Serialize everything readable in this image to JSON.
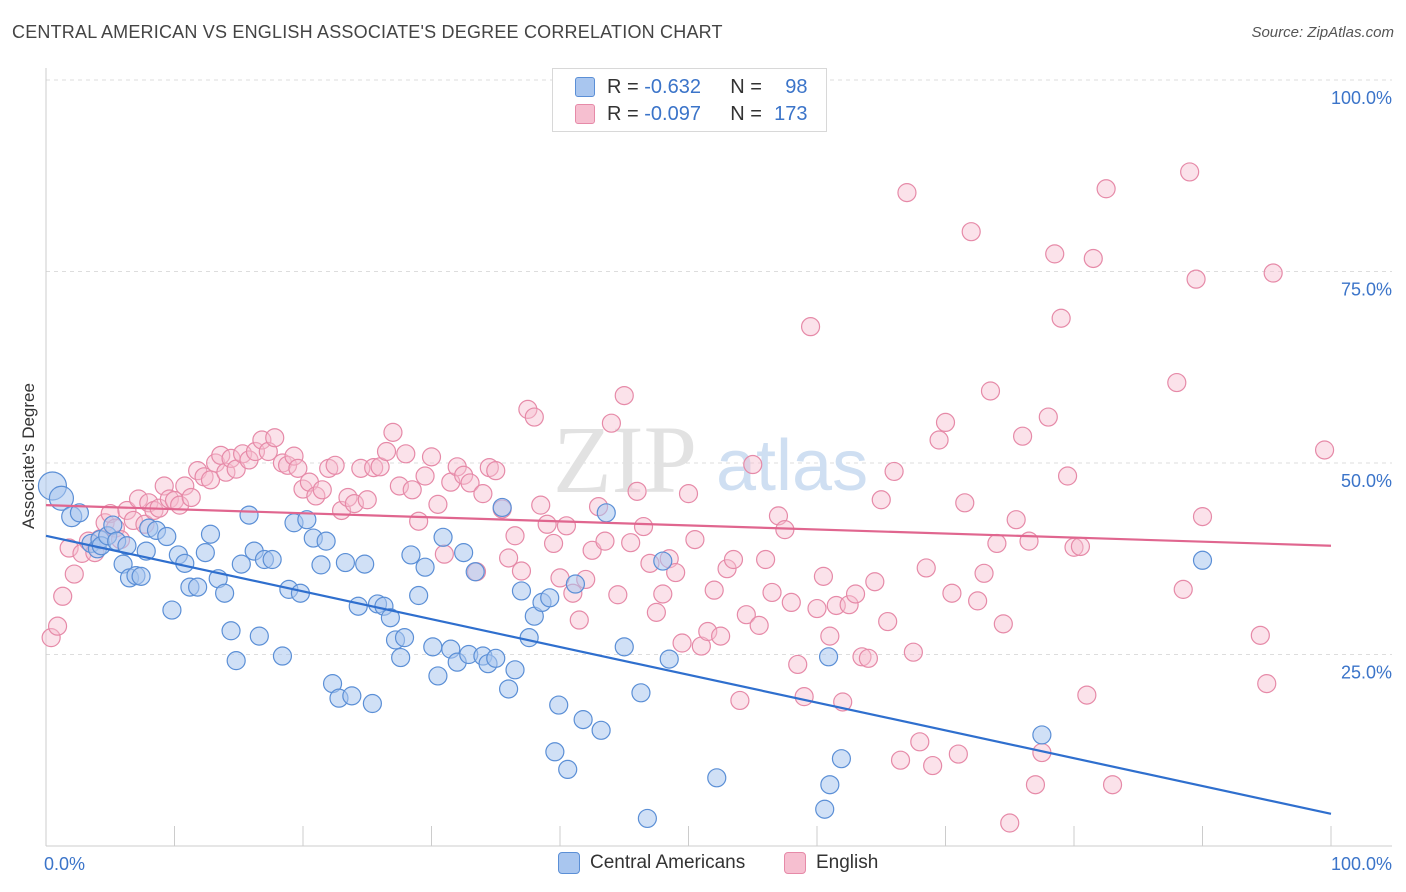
{
  "title": "CENTRAL AMERICAN VS ENGLISH ASSOCIATE'S DEGREE CORRELATION CHART",
  "source": "Source: ZipAtlas.com",
  "watermark": {
    "zip": "ZIP",
    "atlas": "atlas"
  },
  "legend": {
    "rows": [
      {
        "r_label": "R =",
        "r_value": "-0.632",
        "n_label": "N =",
        "n_value": "98"
      },
      {
        "r_label": "R =",
        "r_value": "-0.097",
        "n_label": "N =",
        "n_value": "173"
      }
    ]
  },
  "colors": {
    "blue_fill": "#a9c6ef",
    "blue_stroke": "#5b8fd6",
    "blue_line": "#2f6fce",
    "pink_fill": "#f6bfd0",
    "pink_stroke": "#e68aa8",
    "pink_line": "#e0668f",
    "axis_text": "#3b74c9",
    "grid": "#dddddd"
  },
  "chart_data": {
    "type": "scatter",
    "title": "CENTRAL AMERICAN VS ENGLISH ASSOCIATE'S DEGREE CORRELATION CHART",
    "xlabel": "",
    "ylabel": "Associate's Degree",
    "xlim": [
      0,
      100
    ],
    "ylim": [
      0,
      100
    ],
    "x_tick_labels": [
      "0.0%",
      "100.0%"
    ],
    "y_tick_labels": [
      "100.0%",
      "75.0%",
      "50.0%",
      "25.0%"
    ],
    "y_ticks": [
      100,
      75,
      50,
      25
    ],
    "series": [
      {
        "name": "Central Americans",
        "color": "#5b8fd6",
        "trend": {
          "x": [
            0,
            100
          ],
          "y": [
            40.5,
            4.2
          ]
        },
        "points": [
          [
            0.5,
            47.0
          ],
          [
            1.2,
            45.4
          ],
          [
            2.0,
            43.0
          ],
          [
            2.6,
            43.5
          ],
          [
            3.5,
            39.5
          ],
          [
            4.0,
            38.8
          ],
          [
            4.2,
            40.0
          ],
          [
            4.3,
            39.2
          ],
          [
            4.8,
            40.5
          ],
          [
            5.2,
            41.9
          ],
          [
            5.5,
            39.8
          ],
          [
            6.0,
            36.8
          ],
          [
            6.3,
            39.2
          ],
          [
            6.5,
            35.0
          ],
          [
            7.0,
            35.3
          ],
          [
            7.4,
            35.2
          ],
          [
            7.8,
            38.5
          ],
          [
            8.0,
            41.5
          ],
          [
            8.6,
            41.2
          ],
          [
            9.4,
            40.4
          ],
          [
            9.8,
            30.8
          ],
          [
            10.3,
            38.0
          ],
          [
            10.8,
            36.9
          ],
          [
            11.2,
            33.8
          ],
          [
            11.8,
            33.8
          ],
          [
            12.4,
            38.3
          ],
          [
            12.8,
            40.7
          ],
          [
            13.4,
            34.9
          ],
          [
            13.9,
            33.0
          ],
          [
            14.4,
            28.1
          ],
          [
            14.8,
            24.2
          ],
          [
            15.2,
            36.8
          ],
          [
            15.8,
            43.2
          ],
          [
            16.2,
            38.5
          ],
          [
            16.6,
            27.4
          ],
          [
            17.0,
            37.4
          ],
          [
            17.6,
            37.4
          ],
          [
            18.4,
            24.8
          ],
          [
            18.9,
            33.5
          ],
          [
            19.3,
            42.2
          ],
          [
            19.8,
            33.0
          ],
          [
            20.3,
            42.6
          ],
          [
            20.8,
            40.2
          ],
          [
            21.4,
            36.7
          ],
          [
            21.8,
            39.8
          ],
          [
            22.3,
            21.2
          ],
          [
            22.8,
            19.3
          ],
          [
            23.3,
            37.0
          ],
          [
            23.8,
            19.6
          ],
          [
            24.3,
            31.3
          ],
          [
            24.8,
            36.8
          ],
          [
            25.4,
            18.6
          ],
          [
            25.8,
            31.6
          ],
          [
            26.3,
            31.3
          ],
          [
            26.8,
            29.8
          ],
          [
            27.2,
            26.9
          ],
          [
            27.6,
            24.6
          ],
          [
            27.9,
            27.2
          ],
          [
            28.4,
            38.0
          ],
          [
            29.0,
            32.7
          ],
          [
            29.5,
            36.4
          ],
          [
            30.1,
            26.0
          ],
          [
            30.5,
            22.2
          ],
          [
            30.9,
            40.3
          ],
          [
            31.5,
            25.7
          ],
          [
            32.0,
            24.0
          ],
          [
            32.5,
            38.3
          ],
          [
            32.9,
            25.0
          ],
          [
            33.4,
            35.8
          ],
          [
            34.0,
            24.8
          ],
          [
            34.4,
            23.8
          ],
          [
            35.0,
            24.5
          ],
          [
            35.5,
            44.2
          ],
          [
            36.0,
            20.5
          ],
          [
            36.5,
            23.0
          ],
          [
            37.0,
            33.3
          ],
          [
            37.6,
            27.2
          ],
          [
            38.0,
            30.0
          ],
          [
            38.6,
            31.8
          ],
          [
            39.2,
            32.4
          ],
          [
            39.6,
            12.3
          ],
          [
            39.9,
            18.4
          ],
          [
            40.6,
            10.0
          ],
          [
            41.2,
            34.2
          ],
          [
            41.8,
            16.5
          ],
          [
            43.2,
            15.1
          ],
          [
            43.6,
            43.5
          ],
          [
            45.0,
            26.0
          ],
          [
            46.3,
            20.0
          ],
          [
            46.8,
            3.6
          ],
          [
            48.0,
            37.2
          ],
          [
            48.5,
            24.4
          ],
          [
            52.2,
            8.9
          ],
          [
            60.6,
            4.8
          ],
          [
            60.9,
            24.7
          ],
          [
            61.0,
            8.0
          ],
          [
            61.9,
            11.4
          ],
          [
            77.5,
            14.5
          ],
          [
            90.0,
            37.3
          ]
        ],
        "point_sizes": [
          14,
          12,
          10,
          9,
          9,
          9,
          9,
          9,
          9,
          9,
          9,
          9,
          9,
          9,
          9,
          9,
          9,
          9,
          9,
          9,
          9,
          9,
          9,
          9,
          9,
          9,
          9,
          9,
          9,
          9,
          9,
          9,
          9,
          9,
          9,
          9,
          9,
          9,
          9,
          9,
          9,
          9,
          9,
          9,
          9,
          9,
          9,
          9,
          9,
          9,
          9,
          9,
          9,
          9,
          9,
          9,
          9,
          9,
          9,
          9,
          9,
          9,
          9,
          9,
          9,
          9,
          9,
          9,
          9,
          9,
          9,
          9,
          9,
          9,
          9,
          9,
          9,
          9,
          9,
          9,
          9,
          9,
          9,
          9,
          9,
          9,
          9,
          9,
          9,
          9,
          9,
          9,
          9,
          9,
          9,
          9,
          9,
          9
        ]
      },
      {
        "name": "English",
        "color": "#e68aa8",
        "trend": {
          "x": [
            0,
            100
          ],
          "y": [
            44.5,
            39.2
          ]
        },
        "points": [
          [
            0.4,
            27.2
          ],
          [
            0.9,
            28.7
          ],
          [
            1.3,
            32.6
          ],
          [
            1.8,
            38.9
          ],
          [
            2.2,
            35.5
          ],
          [
            2.8,
            38.2
          ],
          [
            3.3,
            39.8
          ],
          [
            3.8,
            38.3
          ],
          [
            4.2,
            40.1
          ],
          [
            4.6,
            42.2
          ],
          [
            5.0,
            43.4
          ],
          [
            5.4,
            41.5
          ],
          [
            5.8,
            40.0
          ],
          [
            6.3,
            43.8
          ],
          [
            6.8,
            42.5
          ],
          [
            7.2,
            45.3
          ],
          [
            7.7,
            42.0
          ],
          [
            8.0,
            44.8
          ],
          [
            8.4,
            43.8
          ],
          [
            8.8,
            44.1
          ],
          [
            9.2,
            47.0
          ],
          [
            9.6,
            45.3
          ],
          [
            10.0,
            45.1
          ],
          [
            10.4,
            44.5
          ],
          [
            10.8,
            47.0
          ],
          [
            11.3,
            45.5
          ],
          [
            11.8,
            49.0
          ],
          [
            12.3,
            48.2
          ],
          [
            12.8,
            47.8
          ],
          [
            13.2,
            50.0
          ],
          [
            13.6,
            51.0
          ],
          [
            14.0,
            48.8
          ],
          [
            14.4,
            50.6
          ],
          [
            14.8,
            49.2
          ],
          [
            15.3,
            51.2
          ],
          [
            15.8,
            50.4
          ],
          [
            16.3,
            51.5
          ],
          [
            16.8,
            53.0
          ],
          [
            17.3,
            51.5
          ],
          [
            17.8,
            53.3
          ],
          [
            18.4,
            50.0
          ],
          [
            18.8,
            49.7
          ],
          [
            19.3,
            50.9
          ],
          [
            19.6,
            49.3
          ],
          [
            20.0,
            46.6
          ],
          [
            20.5,
            47.5
          ],
          [
            21.0,
            45.7
          ],
          [
            21.5,
            46.5
          ],
          [
            22.0,
            49.3
          ],
          [
            22.5,
            49.7
          ],
          [
            23.0,
            43.8
          ],
          [
            23.5,
            45.5
          ],
          [
            24.0,
            44.7
          ],
          [
            24.5,
            49.3
          ],
          [
            25.0,
            45.2
          ],
          [
            25.5,
            49.4
          ],
          [
            26.0,
            49.5
          ],
          [
            26.5,
            51.5
          ],
          [
            27.0,
            54.0
          ],
          [
            27.5,
            47.0
          ],
          [
            28.0,
            51.2
          ],
          [
            28.5,
            46.5
          ],
          [
            29.0,
            42.4
          ],
          [
            29.5,
            48.3
          ],
          [
            30.0,
            50.8
          ],
          [
            30.5,
            44.6
          ],
          [
            31.0,
            38.1
          ],
          [
            31.5,
            47.5
          ],
          [
            32.0,
            49.5
          ],
          [
            32.5,
            48.4
          ],
          [
            33.0,
            47.4
          ],
          [
            33.5,
            35.8
          ],
          [
            34.0,
            46.0
          ],
          [
            34.5,
            49.4
          ],
          [
            35.0,
            49.0
          ],
          [
            35.5,
            44.0
          ],
          [
            36.0,
            37.6
          ],
          [
            36.5,
            40.5
          ],
          [
            37.0,
            35.9
          ],
          [
            37.5,
            57.0
          ],
          [
            38.0,
            56.0
          ],
          [
            38.5,
            44.5
          ],
          [
            39.0,
            42.0
          ],
          [
            39.5,
            39.5
          ],
          [
            40.0,
            35.0
          ],
          [
            40.5,
            41.8
          ],
          [
            41.0,
            33.0
          ],
          [
            41.5,
            29.5
          ],
          [
            42.0,
            34.8
          ],
          [
            42.5,
            38.6
          ],
          [
            43.0,
            44.3
          ],
          [
            43.5,
            39.8
          ],
          [
            44.0,
            55.2
          ],
          [
            44.5,
            32.8
          ],
          [
            45.0,
            58.8
          ],
          [
            45.5,
            39.6
          ],
          [
            46.0,
            46.3
          ],
          [
            46.5,
            41.7
          ],
          [
            47.0,
            36.9
          ],
          [
            47.5,
            30.5
          ],
          [
            48.0,
            32.9
          ],
          [
            48.5,
            37.5
          ],
          [
            49.0,
            35.7
          ],
          [
            49.5,
            26.5
          ],
          [
            50.0,
            46.0
          ],
          [
            50.5,
            40.0
          ],
          [
            51.0,
            26.1
          ],
          [
            51.5,
            28.0
          ],
          [
            52.0,
            33.4
          ],
          [
            52.5,
            27.4
          ],
          [
            53.0,
            36.2
          ],
          [
            53.5,
            37.4
          ],
          [
            54.0,
            19.0
          ],
          [
            54.5,
            30.2
          ],
          [
            55.0,
            49.8
          ],
          [
            55.5,
            28.8
          ],
          [
            56.0,
            37.4
          ],
          [
            56.5,
            33.1
          ],
          [
            57.0,
            43.1
          ],
          [
            57.5,
            41.3
          ],
          [
            58.0,
            31.8
          ],
          [
            58.5,
            23.7
          ],
          [
            59.0,
            19.5
          ],
          [
            59.5,
            67.8
          ],
          [
            60.0,
            31.0
          ],
          [
            60.5,
            35.2
          ],
          [
            61.0,
            27.4
          ],
          [
            61.5,
            31.4
          ],
          [
            62.0,
            18.8
          ],
          [
            62.5,
            31.5
          ],
          [
            63.0,
            32.9
          ],
          [
            63.5,
            24.7
          ],
          [
            64.0,
            24.5
          ],
          [
            64.5,
            34.5
          ],
          [
            65.0,
            45.2
          ],
          [
            65.5,
            29.3
          ],
          [
            66.0,
            48.9
          ],
          [
            66.5,
            11.2
          ],
          [
            67.0,
            85.3
          ],
          [
            67.5,
            25.3
          ],
          [
            68.0,
            13.6
          ],
          [
            68.5,
            36.3
          ],
          [
            69.0,
            10.5
          ],
          [
            69.5,
            53.0
          ],
          [
            70.0,
            55.3
          ],
          [
            70.5,
            33.0
          ],
          [
            71.0,
            12.0
          ],
          [
            71.5,
            44.8
          ],
          [
            72.0,
            80.2
          ],
          [
            72.5,
            32.0
          ],
          [
            73.0,
            35.6
          ],
          [
            73.5,
            59.4
          ],
          [
            74.0,
            39.5
          ],
          [
            74.5,
            29.0
          ],
          [
            75.0,
            3.0
          ],
          [
            75.5,
            42.6
          ],
          [
            76.0,
            53.5
          ],
          [
            76.5,
            39.8
          ],
          [
            77.0,
            8.0
          ],
          [
            77.5,
            12.2
          ],
          [
            78.0,
            56.0
          ],
          [
            78.5,
            77.3
          ],
          [
            79.0,
            68.9
          ],
          [
            79.5,
            48.3
          ],
          [
            80.0,
            39.0
          ],
          [
            80.5,
            39.1
          ],
          [
            81.0,
            19.7
          ],
          [
            81.5,
            76.7
          ],
          [
            82.5,
            85.8
          ],
          [
            83.0,
            8.0
          ],
          [
            88.0,
            60.5
          ],
          [
            88.5,
            33.5
          ],
          [
            89.0,
            88.0
          ],
          [
            89.5,
            74.0
          ],
          [
            90.0,
            43.0
          ],
          [
            94.5,
            27.5
          ],
          [
            95.0,
            21.2
          ],
          [
            95.5,
            74.8
          ],
          [
            99.5,
            51.7
          ]
        ]
      }
    ]
  }
}
